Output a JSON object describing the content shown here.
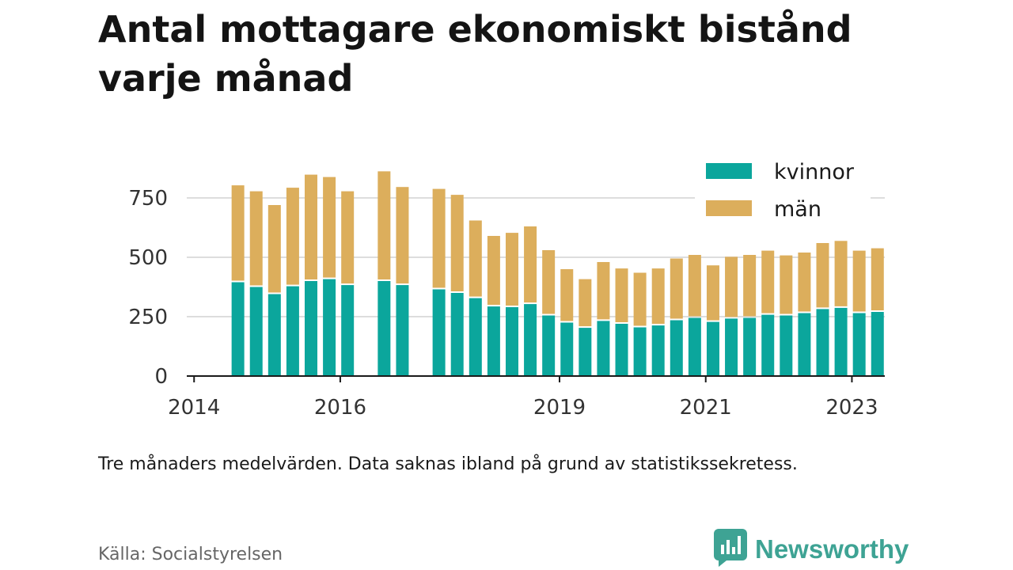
{
  "title": "Antal mottagare ekonomiskt bistånd varje månad",
  "note": "Tre månaders medelvärden. Data saknas ibland på grund av statistikssekretess.",
  "source": "Källa: Socialstyrelsen",
  "brand": {
    "name": "Newsworthy",
    "icon": "bar-chart-logo-icon"
  },
  "colors": {
    "kvinnor": "#0ba69c",
    "man": "#dcae5c",
    "axis": "#1a1a1a",
    "grid": "#dddddd",
    "brand": "#3ea394"
  },
  "chart_data": {
    "type": "bar",
    "stacked": true,
    "x_unit": "year",
    "xlim": [
      2013.9,
      2023.45
    ],
    "ylim": [
      0,
      900
    ],
    "yticks": [
      0,
      250,
      500,
      750
    ],
    "ytick_labels": [
      "0",
      "250",
      "500",
      "750"
    ],
    "xticks": [
      2014,
      2016,
      2019,
      2021,
      2023
    ],
    "xtick_labels": [
      "2014",
      "2016",
      "2019",
      "2021",
      "2023"
    ],
    "grid": true,
    "legend_position": "top-right",
    "x": [
      2014.6,
      2014.85,
      2015.1,
      2015.35,
      2015.6,
      2015.85,
      2016.1,
      2016.6,
      2016.85,
      2017.35,
      2017.6,
      2017.85,
      2018.1,
      2018.35,
      2018.6,
      2018.85,
      2019.1,
      2019.35,
      2019.6,
      2019.85,
      2020.1,
      2020.35,
      2020.6,
      2020.85,
      2021.1,
      2021.35,
      2021.6,
      2021.85,
      2022.1,
      2022.35,
      2022.6,
      2022.85,
      2023.1,
      2023.35
    ],
    "series": [
      {
        "name": "kvinnor",
        "values": [
          395,
          375,
          345,
          378,
          400,
          408,
          383,
          400,
          383,
          365,
          350,
          328,
          293,
          290,
          303,
          255,
          225,
          203,
          232,
          220,
          205,
          213,
          235,
          245,
          228,
          242,
          245,
          258,
          255,
          265,
          282,
          287,
          265,
          270
        ]
      },
      {
        "name": "män",
        "values": [
          408,
          403,
          375,
          415,
          448,
          430,
          395,
          462,
          413,
          423,
          413,
          327,
          297,
          313,
          327,
          275,
          225,
          205,
          248,
          233,
          230,
          240,
          260,
          265,
          238,
          260,
          265,
          270,
          253,
          255,
          278,
          282,
          263,
          268
        ]
      }
    ]
  }
}
